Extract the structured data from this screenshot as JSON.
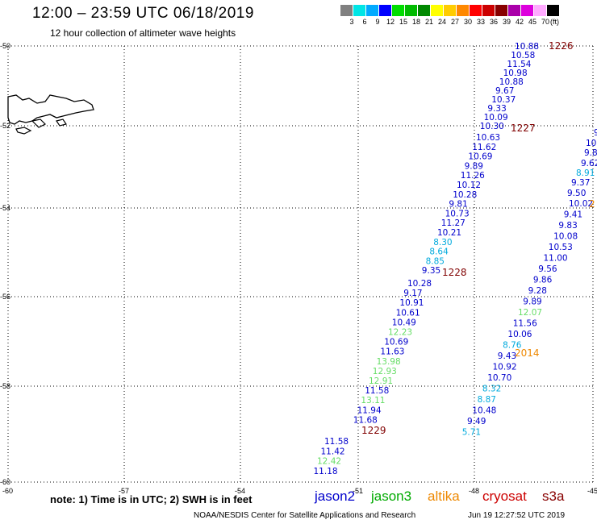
{
  "header": {
    "title": "12:00 – 23:59 UTC 06/18/2019",
    "subtitle": "12 hour collection of altimeter wave heights"
  },
  "scale": {
    "colors": [
      "#808080",
      "#00e5e5",
      "#00aaff",
      "#0000ff",
      "#00dd00",
      "#00bb00",
      "#008800",
      "#ffff00",
      "#ffcc00",
      "#ff8800",
      "#ff0000",
      "#cc0000",
      "#880000",
      "#aa00aa",
      "#dd00dd",
      "#ffaaff",
      "#000000"
    ],
    "labels": [
      "3",
      "6",
      "9",
      "12",
      "15",
      "18",
      "21",
      "24",
      "27",
      "30",
      "33",
      "36",
      "39",
      "42",
      "45",
      "70",
      "(ft)"
    ]
  },
  "map": {
    "lat_labels": [
      "-50",
      "-52",
      "-54",
      "-56",
      "-58",
      "-60"
    ],
    "lon_labels": [
      "-60",
      "-57",
      "-54",
      "-51",
      "-48",
      "-45"
    ],
    "passes": [
      {
        "id": "1226",
        "color": "#800000",
        "readings": [
          {
            "v": "10.88",
            "c": "#0000cc"
          },
          {
            "v": "10.58",
            "c": "#0000cc"
          },
          {
            "v": "11.54",
            "c": "#0000cc"
          },
          {
            "v": "10.98",
            "c": "#0000cc"
          },
          {
            "v": "10.88",
            "c": "#0000cc"
          },
          {
            "v": "9.67",
            "c": "#0000cc"
          },
          {
            "v": "10.37",
            "c": "#0000cc"
          },
          {
            "v": "9.33",
            "c": "#0000cc"
          },
          {
            "v": "10.09",
            "c": "#0000cc"
          },
          {
            "v": "10.30",
            "c": "#0000cc"
          }
        ]
      },
      {
        "id": "1227",
        "color": "#800000",
        "readings": [
          {
            "v": "10.63",
            "c": "#0000cc"
          },
          {
            "v": "11.62",
            "c": "#0000cc"
          },
          {
            "v": "10.69",
            "c": "#0000cc"
          },
          {
            "v": "9.89",
            "c": "#0000cc"
          },
          {
            "v": "11.26",
            "c": "#0000cc"
          },
          {
            "v": "10.12",
            "c": "#0000cc"
          },
          {
            "v": "10.28",
            "c": "#0000cc"
          },
          {
            "v": "9.81",
            "c": "#0000cc"
          },
          {
            "v": "10.73",
            "c": "#0000cc"
          },
          {
            "v": "11.27",
            "c": "#0000cc"
          },
          {
            "v": "10.21",
            "c": "#0000cc"
          },
          {
            "v": "8.30",
            "c": "#00aadd"
          },
          {
            "v": "8.64",
            "c": "#00aadd"
          },
          {
            "v": "8.85",
            "c": "#00aadd"
          },
          {
            "v": "9.35",
            "c": "#0000cc"
          }
        ]
      },
      {
        "id": "1228",
        "color": "#800000",
        "readings": [
          {
            "v": "10.28",
            "c": "#0000cc"
          },
          {
            "v": "9.17",
            "c": "#0000cc"
          },
          {
            "v": "10.91",
            "c": "#0000cc"
          },
          {
            "v": "10.61",
            "c": "#0000cc"
          },
          {
            "v": "10.49",
            "c": "#0000cc"
          },
          {
            "v": "12.23",
            "c": "#66dd66"
          },
          {
            "v": "10.69",
            "c": "#0000cc"
          },
          {
            "v": "11.63",
            "c": "#0000cc"
          },
          {
            "v": "13.98",
            "c": "#66dd66"
          },
          {
            "v": "12.93",
            "c": "#66dd66"
          },
          {
            "v": "12.91",
            "c": "#66dd66"
          },
          {
            "v": "11.58",
            "c": "#0000cc"
          },
          {
            "v": "13.11",
            "c": "#66dd66"
          },
          {
            "v": "11.94",
            "c": "#0000cc"
          },
          {
            "v": "11.68",
            "c": "#0000cc"
          }
        ]
      },
      {
        "id": "1229",
        "color": "#800000",
        "readings": [
          {
            "v": "11.58",
            "c": "#0000cc"
          },
          {
            "v": "11.42",
            "c": "#0000cc"
          },
          {
            "v": "12.42",
            "c": "#66dd66"
          },
          {
            "v": "11.18",
            "c": "#0000cc"
          }
        ]
      }
    ],
    "pass2": {
      "id": "2014",
      "color": "#ee8800",
      "readings": [
        {
          "v": "10.02",
          "c": "#0000cc"
        },
        {
          "v": "9.41",
          "c": "#0000cc"
        },
        {
          "v": "9.83",
          "c": "#0000cc"
        },
        {
          "v": "10.08",
          "c": "#0000cc"
        },
        {
          "v": "10.53",
          "c": "#0000cc"
        },
        {
          "v": "11.00",
          "c": "#0000cc"
        },
        {
          "v": "9.56",
          "c": "#0000cc"
        },
        {
          "v": "9.86",
          "c": "#0000cc"
        },
        {
          "v": "9.28",
          "c": "#0000cc"
        },
        {
          "v": "9.89",
          "c": "#0000cc"
        },
        {
          "v": "12.07",
          "c": "#66dd66"
        },
        {
          "v": "11.56",
          "c": "#0000cc"
        },
        {
          "v": "10.06",
          "c": "#0000cc"
        },
        {
          "v": "8.76",
          "c": "#00aadd"
        },
        {
          "v": "9.43",
          "c": "#0000cc"
        },
        {
          "v": "10.92",
          "c": "#0000cc"
        },
        {
          "v": "10.70",
          "c": "#0000cc"
        },
        {
          "v": "8.32",
          "c": "#00aadd"
        },
        {
          "v": "8.87",
          "c": "#00aadd"
        },
        {
          "v": "10.48",
          "c": "#0000cc"
        },
        {
          "v": "9.49",
          "c": "#0000cc"
        },
        {
          "v": "5.71",
          "c": "#00aadd"
        }
      ]
    },
    "edge_readings": [
      {
        "v": "9",
        "c": "#0000cc"
      },
      {
        "v": "10",
        "c": "#0000cc"
      },
      {
        "v": "9.8",
        "c": "#0000cc"
      },
      {
        "v": "9.62",
        "c": "#0000cc"
      },
      {
        "v": "8.91",
        "c": "#00aadd"
      },
      {
        "v": "9.37",
        "c": "#0000cc"
      },
      {
        "v": "9.50",
        "c": "#0000cc"
      },
      {
        "v": "2",
        "c": "#ee8800"
      }
    ]
  },
  "footer": {
    "note": "note: 1) Time is in UTC; 2) SWH is in feet",
    "source": "NOAA/NESDIS Center for Satellite Applications and Research",
    "timestamp": "Jun 19 12:27:52 UTC 2019"
  },
  "legend": [
    {
      "name": "jason2",
      "color": "#0000cc"
    },
    {
      "name": "jason3",
      "color": "#00aa00"
    },
    {
      "name": "altika",
      "color": "#ee8800"
    },
    {
      "name": "cryosat",
      "color": "#cc0000"
    },
    {
      "name": "s3a",
      "color": "#880000"
    }
  ]
}
